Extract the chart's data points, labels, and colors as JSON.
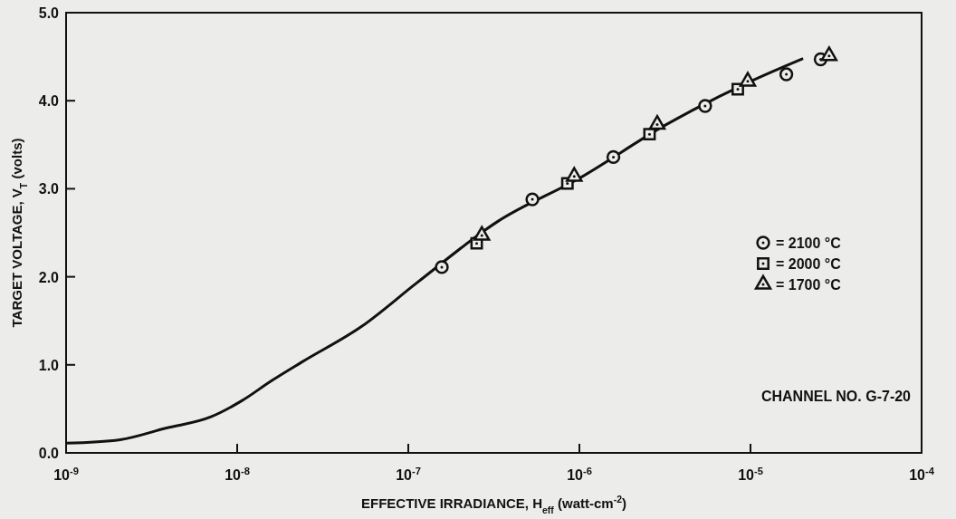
{
  "chart_data": {
    "type": "scatter",
    "xlabel": "EFFECTIVE IRRADIANCE, H$_{eff}$ (watt-cm$^{-2}$)",
    "ylabel": "TARGET VOLTAGE, V$_{T}$ (volts)",
    "log": "x",
    "xlim": [
      1e-09,
      0.0001
    ],
    "xticks": [
      {
        "value": 1e-09,
        "label": "10$^{-9}$"
      },
      {
        "value": 1e-08,
        "label": "10$^{-8}$"
      },
      {
        "value": 1e-07,
        "label": "10$^{-7}$"
      },
      {
        "value": 1e-06,
        "label": "10$^{-6}$"
      },
      {
        "value": 1e-05,
        "label": "10$^{-5}$"
      },
      {
        "value": 0.0001,
        "label": "10$^{-4}$"
      }
    ],
    "ylim": [
      0,
      5
    ],
    "yticks": [
      {
        "value": 0,
        "label": "0.0"
      },
      {
        "value": 1,
        "label": "1.0"
      },
      {
        "value": 2,
        "label": "2.0"
      },
      {
        "value": 3,
        "label": "3.0"
      },
      {
        "value": 4,
        "label": "4.0"
      },
      {
        "value": 5,
        "label": "5.0"
      }
    ],
    "grid": false,
    "legend": "right",
    "series": [
      {
        "type": "line",
        "color": "#111111",
        "line_style": "solid",
        "marker": "none",
        "x": [
          1e-09,
          2.07e-09,
          3.82e-09,
          7.03e-09,
          1.06e-08,
          1.59e-08,
          2.38e-08,
          5.37e-08,
          1.12e-07,
          3.34e-07,
          1e-06,
          3.16e-06,
          1e-05,
          2.03e-05
        ],
        "values": [
          0.11,
          0.15,
          0.28,
          0.41,
          0.59,
          0.82,
          1.03,
          1.44,
          1.93,
          2.63,
          3.12,
          3.72,
          4.22,
          4.48
        ]
      },
      {
        "name": "= 2100 °C",
        "color": "#111111",
        "marker": "circle",
        "x": [
          1.57e-07,
          5.31e-07,
          1.58e-06,
          5.43e-06,
          1.62e-05,
          2.57e-05
        ],
        "values": [
          2.11,
          2.88,
          3.36,
          3.94,
          4.3,
          4.47
        ]
      },
      {
        "name": "= 2000 °C",
        "color": "#111111",
        "marker": "square",
        "x": [
          2.51e-07,
          8.51e-07,
          2.57e-06,
          8.43e-06
        ],
        "values": [
          2.38,
          3.06,
          3.62,
          4.13
        ]
      },
      {
        "name": "= 1700 °C",
        "color": "#111111",
        "marker": "triangle",
        "x": [
          2.69e-07,
          9.33e-07,
          2.85e-06,
          9.64e-06,
          2.88e-05
        ],
        "values": [
          2.47,
          3.14,
          3.73,
          4.22,
          4.51
        ]
      }
    ],
    "annotations": [
      "CHANNEL NO. G-7-20"
    ]
  }
}
